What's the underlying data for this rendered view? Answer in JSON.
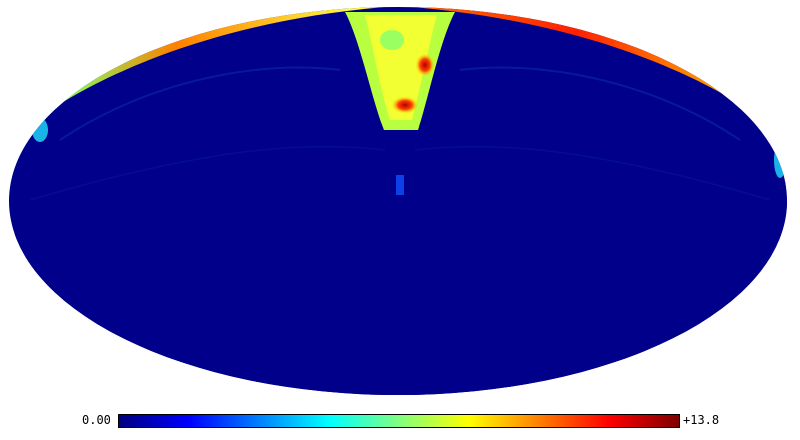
{
  "map": {
    "projection": "mollweide",
    "colormap": "jet",
    "background": "#ffffff",
    "colormap_stops": [
      "#00007f",
      "#0000ff",
      "#0080ff",
      "#00ffff",
      "#80ff80",
      "#ffff00",
      "#ff8000",
      "#ff0000",
      "#7f0000"
    ]
  },
  "colorbar": {
    "min_label": "0.00",
    "max_label": "+13.8"
  }
}
